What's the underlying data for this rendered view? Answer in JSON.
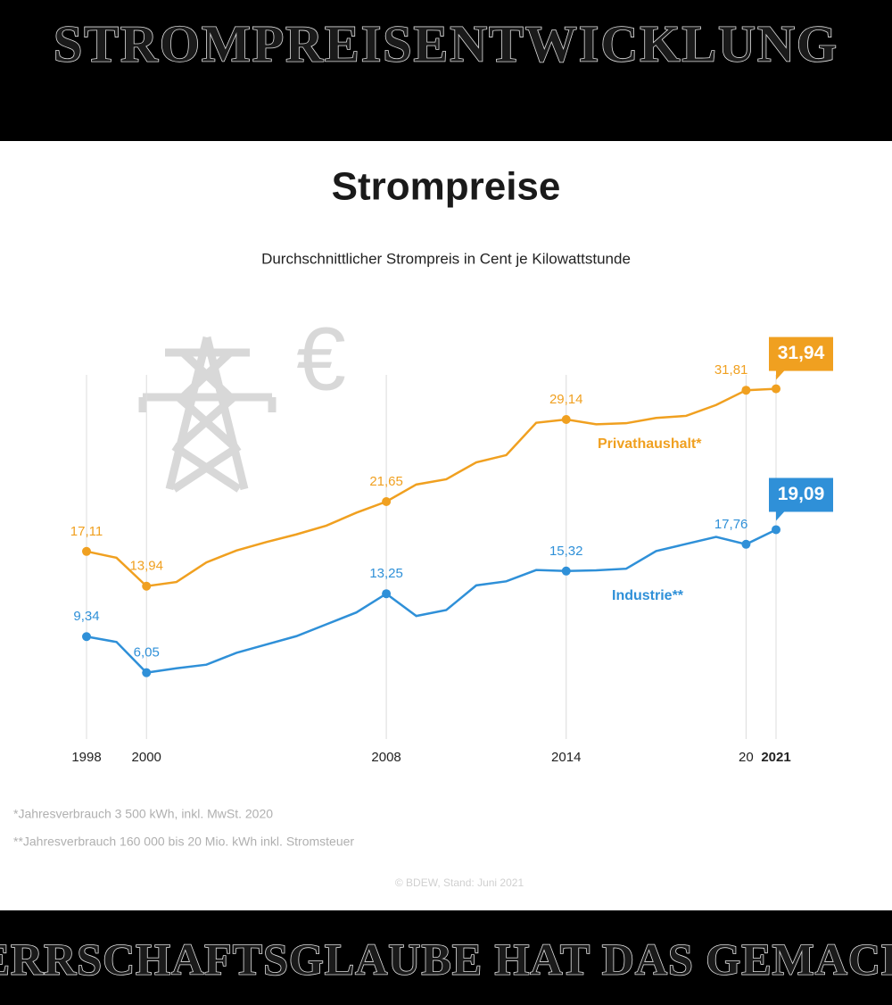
{
  "header_text": "STROMPREISENTWICKLUNG",
  "footer_text": "HERRSCHAFTSGLAUBE HAT DAS GEMACHT",
  "chart_data": {
    "type": "line",
    "title": "Strompreise",
    "subtitle": "Durchschnittlicher Strompreis in Cent je Kilowattstunde",
    "x": [
      1998,
      1999,
      2000,
      2001,
      2002,
      2003,
      2004,
      2005,
      2006,
      2007,
      2008,
      2009,
      2010,
      2011,
      2012,
      2013,
      2014,
      2015,
      2016,
      2017,
      2018,
      2019,
      2020,
      2021
    ],
    "xlim": [
      1998,
      2021
    ],
    "xticks": [
      1998,
      2000,
      2008,
      2014,
      {
        "value": 2020,
        "label": "20"
      },
      2021
    ],
    "ylim": [
      0,
      35
    ],
    "series": [
      {
        "name": "Privathaushalt*",
        "color": "#f0a020",
        "values": [
          17.11,
          16.53,
          13.94,
          14.32,
          16.11,
          17.19,
          17.96,
          18.66,
          19.46,
          20.64,
          21.65,
          23.21,
          23.69,
          25.23,
          25.89,
          28.84,
          29.14,
          28.7,
          28.8,
          29.28,
          29.47,
          30.46,
          31.81,
          31.94
        ],
        "value_labels": [
          "17,11",
          null,
          "13,94",
          null,
          null,
          null,
          null,
          null,
          null,
          null,
          "21,65",
          null,
          null,
          null,
          null,
          null,
          "29,14",
          null,
          null,
          null,
          null,
          null,
          "31,81",
          "31,94"
        ]
      },
      {
        "name": "Industrie**",
        "color": "#2f90d8",
        "values": [
          9.34,
          8.85,
          6.05,
          6.45,
          6.78,
          7.86,
          8.62,
          9.38,
          10.46,
          11.54,
          13.25,
          11.22,
          11.76,
          14.01,
          14.38,
          15.41,
          15.32,
          15.38,
          15.53,
          17.14,
          17.79,
          18.43,
          17.76,
          19.09
        ],
        "value_labels": [
          "9,34",
          null,
          "6,05",
          null,
          null,
          null,
          null,
          null,
          null,
          null,
          "13,25",
          null,
          null,
          null,
          null,
          null,
          "15,32",
          null,
          null,
          null,
          null,
          null,
          "17,76",
          "19,09"
        ]
      }
    ],
    "footnotes": [
      "*Jahresverbrauch 3 500 kWh, inkl. MwSt. 2020",
      "**Jahresverbrauch 160 000 bis 20 Mio. kWh inkl. Stromsteuer"
    ],
    "source": "© BDEW, Stand: Juni 2021"
  }
}
